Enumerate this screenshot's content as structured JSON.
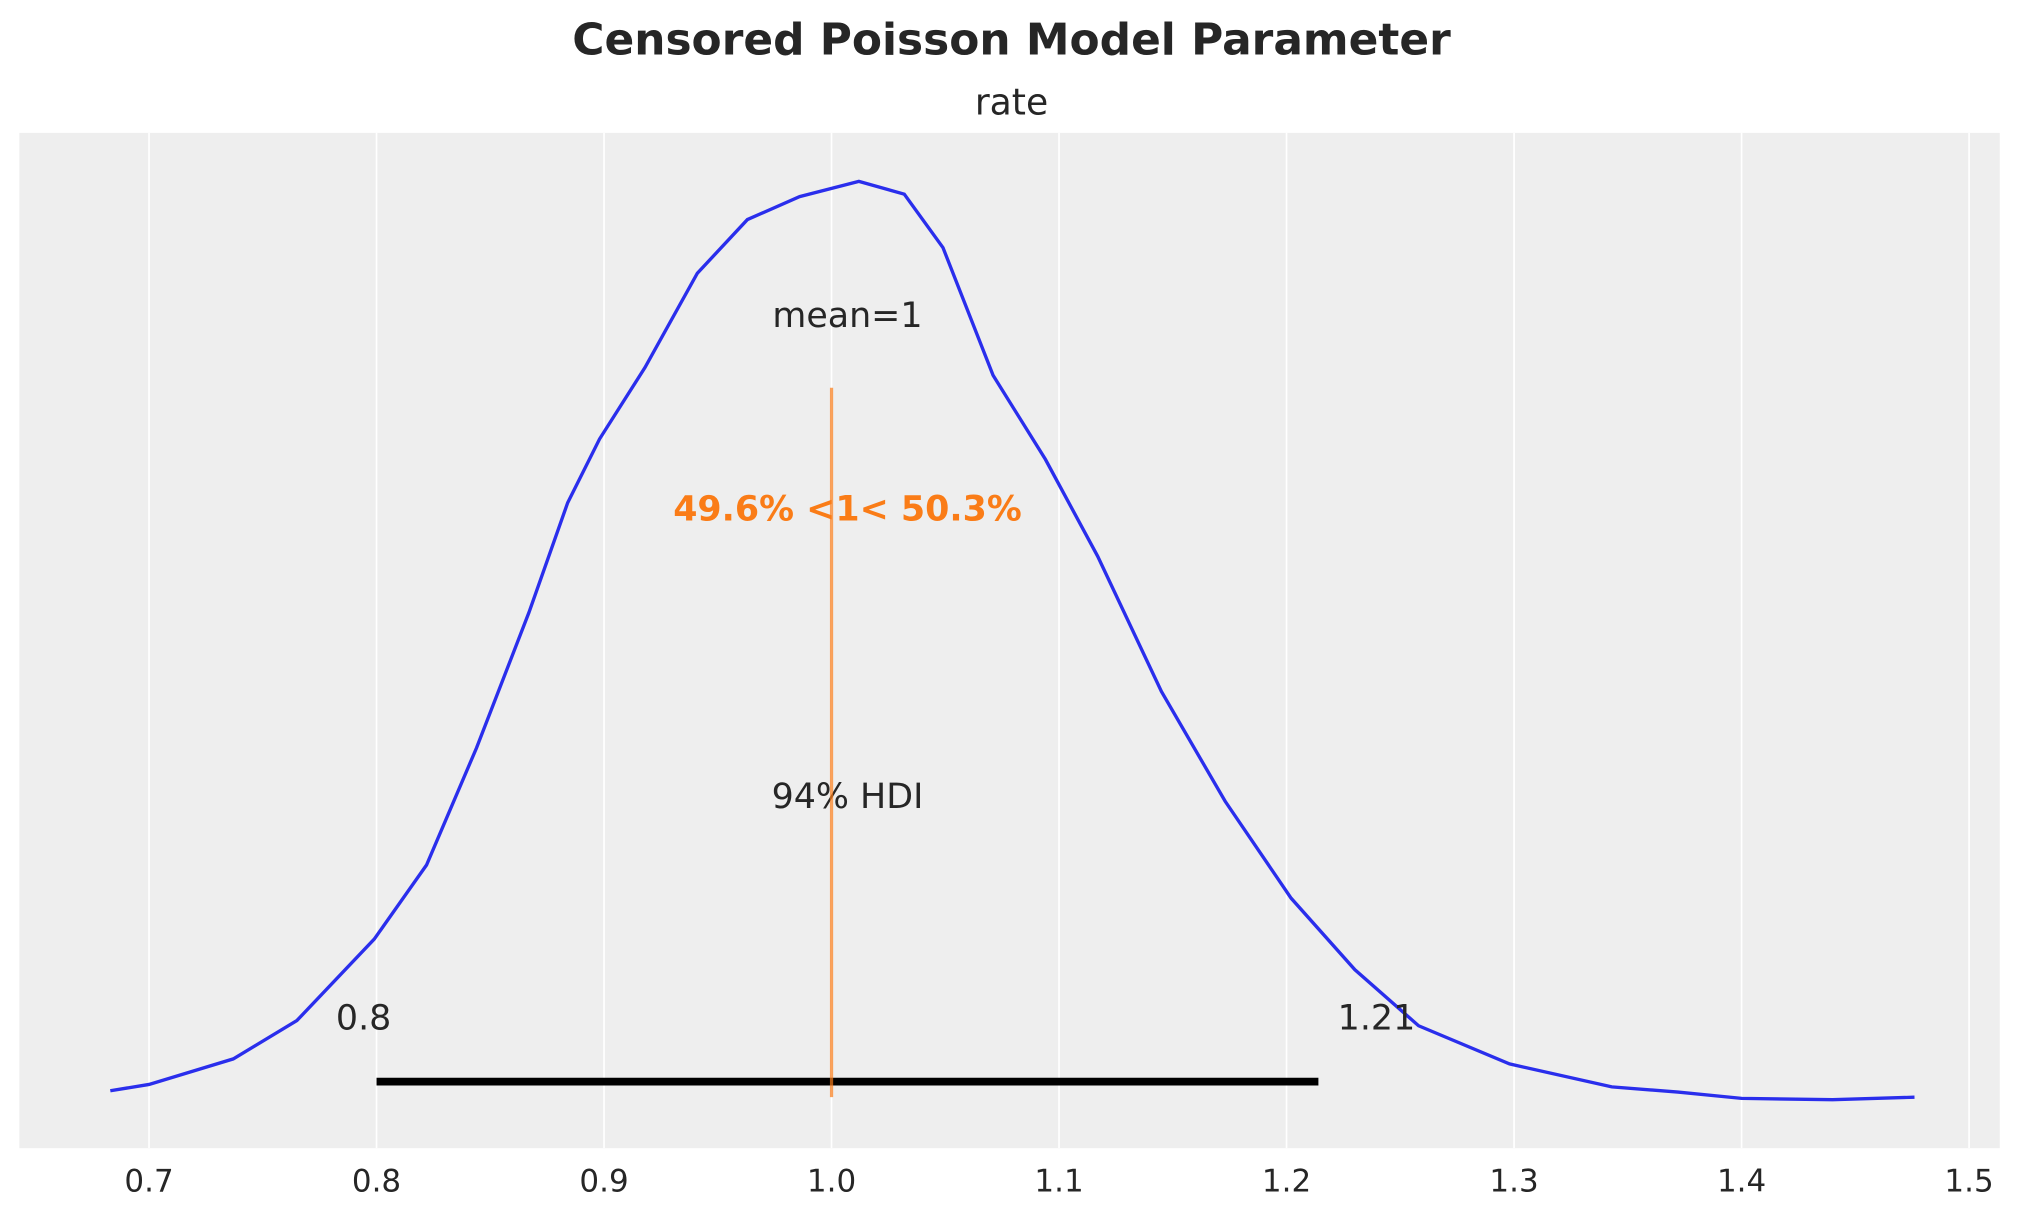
{
  "chart_data": {
    "type": "kde",
    "title": "Censored Poisson Model Parameter",
    "subtitle": "rate",
    "x": [
      0.683,
      0.7,
      0.737,
      0.765,
      0.799,
      0.822,
      0.844,
      0.867,
      0.884,
      0.898,
      0.918,
      0.941,
      0.963,
      0.986,
      1.012,
      1.032,
      1.049,
      1.071,
      1.094,
      1.117,
      1.145,
      1.173,
      1.202,
      1.23,
      1.258,
      1.298,
      1.343,
      1.372,
      1.4,
      1.44,
      1.476
    ],
    "values": [
      0.035,
      0.06,
      0.16,
      0.31,
      0.63,
      0.92,
      1.38,
      1.91,
      2.34,
      2.59,
      2.87,
      3.24,
      3.45,
      3.54,
      3.6,
      3.55,
      3.34,
      2.84,
      2.51,
      2.13,
      1.6,
      1.17,
      0.79,
      0.51,
      0.29,
      0.14,
      0.05,
      0.03,
      0.005,
      0,
      0.01
    ],
    "color": "#2a2eec",
    "hdi": {
      "label": "94% HDI",
      "low": 0.8,
      "high": 1.214,
      "low_label": "0.8",
      "high_label": "1.21",
      "color": "#000000"
    },
    "mean_label": "mean=1",
    "ref": {
      "value": 1,
      "label": "49.6% <1< 50.3%",
      "color": "#fa7c17"
    },
    "xlim": [
      0.643,
      1.5135
    ],
    "ylim": [
      -0.19,
      3.79
    ],
    "xticks": [
      0.7,
      {
        "value": 0.8,
        "label": "0.8"
      },
      0.9,
      {
        "value": 1.0,
        "label": "1.0"
      },
      1.1,
      1.2,
      1.3,
      1.4,
      1.5
    ],
    "grid": true
  }
}
